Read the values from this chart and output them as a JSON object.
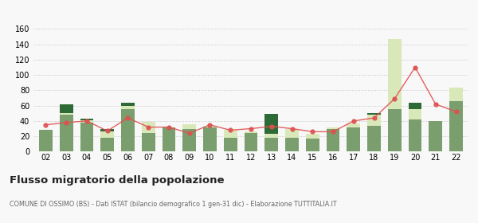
{
  "years": [
    "02",
    "03",
    "04",
    "05",
    "06",
    "07",
    "08",
    "09",
    "10",
    "11",
    "12",
    "13",
    "14",
    "15",
    "16",
    "17",
    "18",
    "19",
    "20",
    "21",
    "22"
  ],
  "iscritti_altri_comuni": [
    28,
    48,
    38,
    18,
    55,
    24,
    32,
    30,
    32,
    18,
    24,
    18,
    18,
    17,
    30,
    32,
    34,
    55,
    42,
    40,
    66
  ],
  "iscritti_estero": [
    0,
    2,
    3,
    8,
    5,
    15,
    0,
    6,
    2,
    10,
    2,
    5,
    12,
    6,
    2,
    5,
    14,
    92,
    14,
    0,
    18
  ],
  "iscritti_altri": [
    0,
    12,
    2,
    3,
    4,
    0,
    0,
    0,
    0,
    0,
    0,
    26,
    0,
    0,
    0,
    0,
    2,
    0,
    8,
    0,
    0
  ],
  "cancellati": [
    35,
    38,
    40,
    27,
    44,
    32,
    32,
    24,
    35,
    28,
    30,
    33,
    30,
    26,
    26,
    40,
    44,
    69,
    110,
    62,
    52
  ],
  "color_altri_comuni": "#7a9e6e",
  "color_estero": "#d8e8b8",
  "color_altri": "#2d6a35",
  "color_cancellati": "#e05050",
  "ylim": [
    0,
    160
  ],
  "yticks": [
    0,
    20,
    40,
    60,
    80,
    100,
    120,
    140,
    160
  ],
  "title": "Flusso migratorio della popolazione",
  "subtitle": "COMUNE DI OSSIMO (BS) - Dati ISTAT (bilancio demografico 1 gen-31 dic) - Elaborazione TUTTITALIA.IT",
  "bg_color": "#f8f8f8"
}
